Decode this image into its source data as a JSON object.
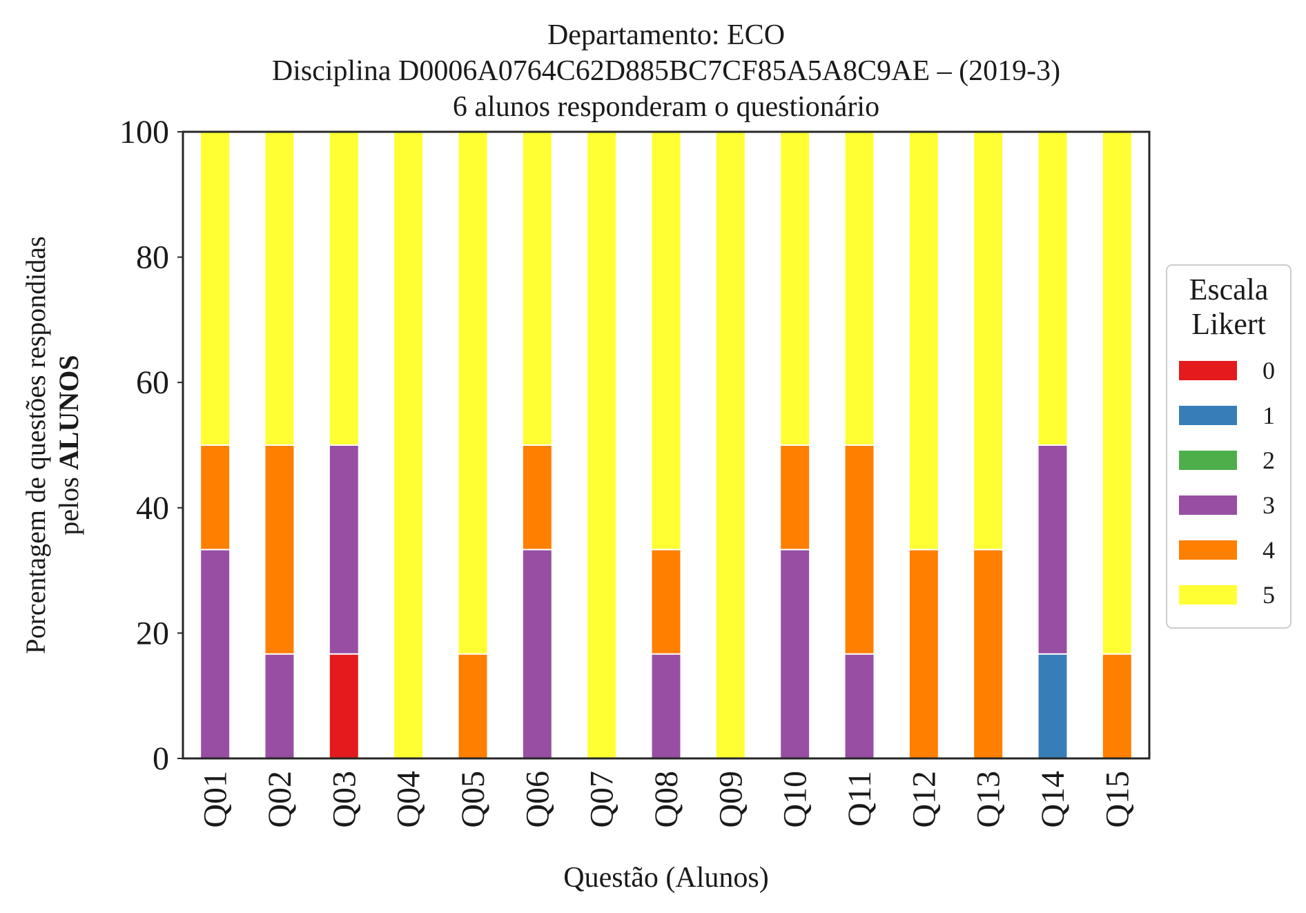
{
  "chart_data": {
    "type": "bar",
    "stacked": true,
    "title_lines": [
      "Departamento: ECO",
      "Disciplina D0006A0764C62D885BC7CF85A5A8C9AE – (2019-3)",
      "6 alunos responderam o questionário"
    ],
    "xlabel": "Questão (Alunos)",
    "ylabel_line1": "Porcentagem de questões respondidas",
    "ylabel_line2_prefix": "pelos ",
    "ylabel_line2_bold": "ALUNOS",
    "ylim": [
      0,
      100
    ],
    "yticks": [
      "0",
      "20",
      "40",
      "60",
      "80",
      "100"
    ],
    "categories": [
      "Q01",
      "Q02",
      "Q03",
      "Q04",
      "Q05",
      "Q06",
      "Q07",
      "Q08",
      "Q09",
      "Q10",
      "Q11",
      "Q12",
      "Q13",
      "Q14",
      "Q15"
    ],
    "grid": false,
    "legend": {
      "title_lines": [
        "Escala",
        "Likert"
      ],
      "placement": "right"
    },
    "series": [
      {
        "name": "0",
        "color": "#e41a1c",
        "values": [
          0,
          0,
          16.67,
          0,
          0,
          0,
          0,
          0,
          0,
          0,
          0,
          0,
          0,
          0,
          0
        ]
      },
      {
        "name": "1",
        "color": "#377eb8",
        "values": [
          0,
          0,
          0,
          0,
          0,
          0,
          0,
          0,
          0,
          0,
          0,
          0,
          0,
          16.67,
          0
        ]
      },
      {
        "name": "2",
        "color": "#4daf4a",
        "values": [
          0,
          0,
          0,
          0,
          0,
          0,
          0,
          0,
          0,
          0,
          0,
          0,
          0,
          0,
          0
        ]
      },
      {
        "name": "3",
        "color": "#984ea3",
        "values": [
          33.33,
          16.67,
          33.33,
          0,
          0,
          33.33,
          0,
          16.67,
          0,
          33.33,
          16.67,
          0,
          0,
          33.33,
          0
        ]
      },
      {
        "name": "4",
        "color": "#ff7f00",
        "values": [
          16.67,
          33.33,
          0,
          0,
          16.67,
          16.67,
          0,
          16.67,
          0,
          16.67,
          33.33,
          33.33,
          33.33,
          0,
          16.67
        ]
      },
      {
        "name": "5",
        "color": "#ffff33",
        "values": [
          50,
          50,
          50,
          100,
          83.33,
          50,
          100,
          66.67,
          100,
          50,
          50,
          66.67,
          66.67,
          50,
          83.33
        ]
      }
    ]
  }
}
